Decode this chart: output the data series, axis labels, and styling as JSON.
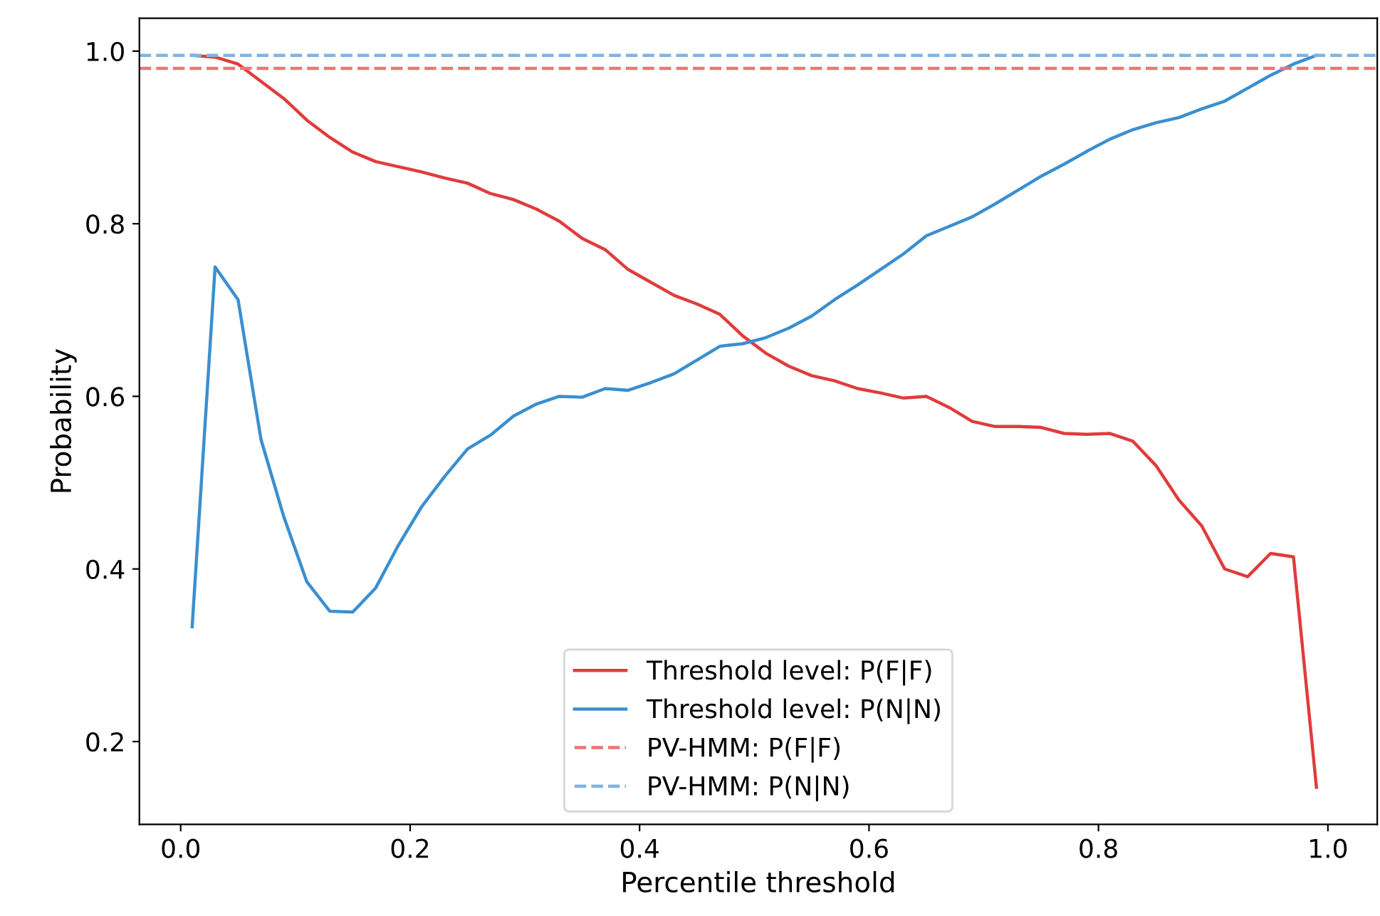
{
  "chart_data": {
    "type": "line",
    "xlabel": "Percentile threshold",
    "ylabel": "Probability",
    "x": [
      0.01,
      0.03,
      0.05,
      0.07,
      0.09,
      0.11,
      0.13,
      0.15,
      0.17,
      0.19,
      0.21,
      0.23,
      0.25,
      0.27,
      0.29,
      0.31,
      0.33,
      0.35,
      0.37,
      0.39,
      0.41,
      0.43,
      0.45,
      0.47,
      0.49,
      0.51,
      0.53,
      0.55,
      0.57,
      0.59,
      0.61,
      0.63,
      0.65,
      0.67,
      0.69,
      0.71,
      0.73,
      0.75,
      0.77,
      0.79,
      0.81,
      0.83,
      0.85,
      0.87,
      0.89,
      0.91,
      0.93,
      0.95,
      0.97,
      0.99
    ],
    "series": [
      {
        "name": "Threshold level: P(F|F)",
        "color": "#e03c3c",
        "values": [
          0.995,
          0.993,
          0.985,
          0.965,
          0.945,
          0.92,
          0.9,
          0.883,
          0.872,
          0.866,
          0.86,
          0.853,
          0.847,
          0.835,
          0.828,
          0.817,
          0.803,
          0.783,
          0.77,
          0.747,
          0.732,
          0.717,
          0.707,
          0.695,
          0.67,
          0.65,
          0.635,
          0.624,
          0.618,
          0.609,
          0.604,
          0.598,
          0.6,
          0.587,
          0.571,
          0.565,
          0.565,
          0.564,
          0.557,
          0.556,
          0.557,
          0.548,
          0.52,
          0.48,
          0.45,
          0.4,
          0.391,
          0.418,
          0.414,
          0.147
        ]
      },
      {
        "name": "Threshold level: P(N|N)",
        "color": "#3a8fd0",
        "values": [
          0.333,
          0.75,
          0.712,
          0.55,
          0.46,
          0.385,
          0.351,
          0.35,
          0.378,
          0.428,
          0.472,
          0.507,
          0.539,
          0.555,
          0.577,
          0.591,
          0.6,
          0.599,
          0.609,
          0.607,
          0.616,
          0.626,
          0.642,
          0.658,
          0.661,
          0.668,
          0.679,
          0.693,
          0.712,
          0.729,
          0.747,
          0.765,
          0.786,
          0.797,
          0.808,
          0.823,
          0.839,
          0.855,
          0.869,
          0.884,
          0.898,
          0.909,
          0.917,
          0.923,
          0.933,
          0.942,
          0.957,
          0.972,
          0.985,
          0.995
        ]
      }
    ],
    "ref_lines": [
      {
        "axis": "y",
        "value": 0.98,
        "label": "PV-HMM: P(F|F)",
        "color": "#e97777",
        "line_style": "dashed"
      },
      {
        "axis": "y",
        "value": 0.995,
        "label": "PV-HMM: P(N|N)",
        "color": "#7fb5e2",
        "line_style": "dashed"
      }
    ],
    "xlim": [
      -0.036,
      1.043
    ],
    "ylim": [
      0.104,
      1.038
    ],
    "xticks": [
      {
        "value": 0,
        "label": "0.0"
      },
      0.2,
      0.4,
      0.6,
      0.8,
      {
        "value": 1,
        "label": "1.0"
      }
    ],
    "yticks": [
      0.2,
      0.4,
      0.6,
      0.8,
      {
        "value": 1,
        "label": "1.0"
      }
    ],
    "grid": false,
    "legend": "bottom",
    "marker": "none",
    "line_style": "solid"
  }
}
